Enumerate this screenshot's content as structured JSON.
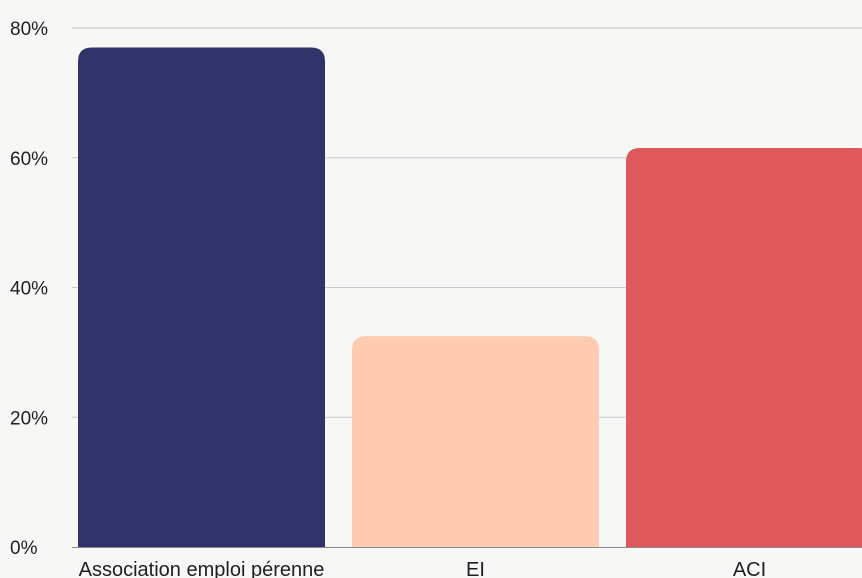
{
  "chart_data": {
    "type": "bar",
    "categories": [
      "Association emploi pérenne",
      "EI",
      "ACI"
    ],
    "values": [
      77,
      32.5,
      61.5
    ],
    "colors": [
      "#303468",
      "#fecbb0",
      "#de585c"
    ],
    "ylim": [
      0,
      80
    ],
    "yticks": [
      0,
      20,
      40,
      60,
      80
    ],
    "ytick_labels": [
      "0%",
      "20%",
      "40%",
      "60%",
      "80%"
    ],
    "grid": true,
    "legend": "none",
    "title": "",
    "xlabel": "",
    "ylabel": ""
  }
}
